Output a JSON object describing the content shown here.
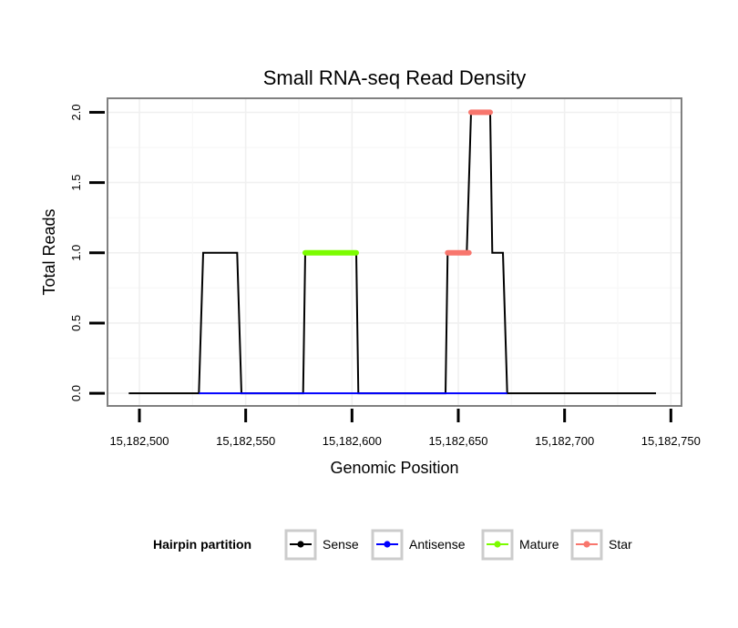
{
  "chart_data": {
    "type": "line",
    "title": "Small RNA-seq Read Density",
    "xlabel": "Genomic Position",
    "ylabel": "Total Reads",
    "xlim": [
      15182485,
      15182755
    ],
    "ylim": [
      -0.09,
      2.1
    ],
    "x_ticks": [
      15182500,
      15182550,
      15182600,
      15182650,
      15182700,
      15182750
    ],
    "x_tick_labels": [
      "15,182,500",
      "15,182,550",
      "15,182,600",
      "15,182,650",
      "15,182,700",
      "15,182,750"
    ],
    "y_ticks": [
      0,
      0.5,
      1,
      1.5,
      2
    ],
    "y_tick_labels": [
      "0.0",
      "0.5",
      "1.0",
      "1.5",
      "2.0"
    ],
    "grid": true,
    "legend": {
      "title": "Hairpin partition",
      "position": "bottom",
      "entries": [
        {
          "name": "Sense",
          "color": "#000000"
        },
        {
          "name": "Antisense",
          "color": "#0000ff"
        },
        {
          "name": "Mature",
          "color": "#7cfc00"
        },
        {
          "name": "Star",
          "color": "#f8766d"
        }
      ]
    },
    "series": [
      {
        "name": "Sense",
        "color": "#000000",
        "width": 2,
        "points": [
          [
            15182495,
            0
          ],
          [
            15182528,
            0
          ],
          [
            15182530,
            1
          ],
          [
            15182546,
            1
          ],
          [
            15182548,
            0
          ],
          [
            15182577,
            0
          ],
          [
            15182578,
            1
          ],
          [
            15182602,
            1
          ],
          [
            15182603,
            0
          ],
          [
            15182644,
            0
          ],
          [
            15182645,
            1
          ],
          [
            15182654,
            1
          ],
          [
            15182656,
            2
          ],
          [
            15182665,
            2
          ],
          [
            15182666,
            1
          ],
          [
            15182671,
            1
          ],
          [
            15182673,
            0
          ],
          [
            15182743,
            0
          ]
        ]
      },
      {
        "name": "Antisense",
        "color": "#0000ff",
        "width": 2,
        "points": [
          [
            15182528,
            0
          ],
          [
            15182548,
            0
          ],
          [
            15182577,
            0
          ],
          [
            15182603,
            0
          ],
          [
            15182644,
            0
          ],
          [
            15182673,
            0
          ]
        ]
      },
      {
        "name": "Mature",
        "color": "#7cfc00",
        "width": 6,
        "points": [
          [
            15182578,
            1
          ],
          [
            15182602,
            1
          ]
        ]
      },
      {
        "name": "Star",
        "color": "#f8766d",
        "width": 6,
        "segments": [
          [
            [
              15182645,
              1
            ],
            [
              15182655,
              1
            ]
          ],
          [
            [
              15182656,
              2
            ],
            [
              15182665,
              2
            ]
          ]
        ]
      }
    ]
  }
}
